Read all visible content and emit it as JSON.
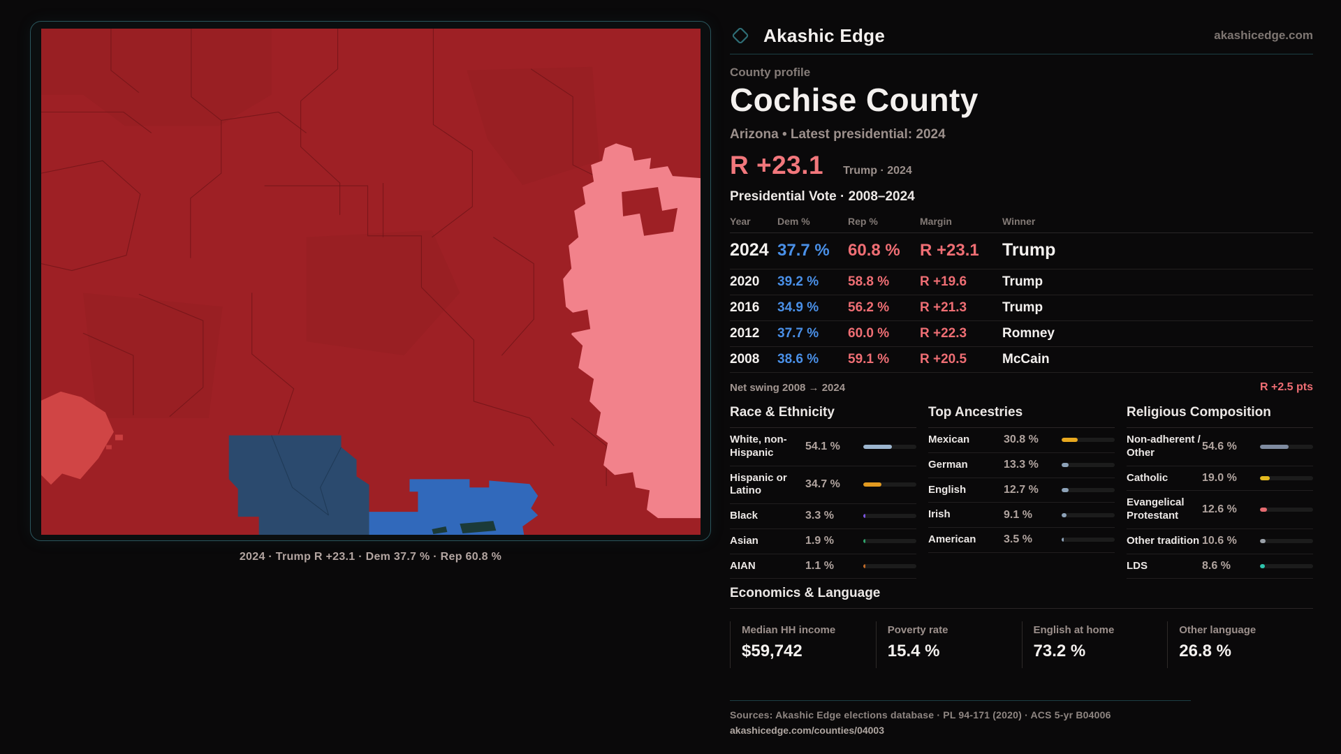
{
  "colors": {
    "accent_teal": "#2b565d",
    "dem_blue": "#4a90e8",
    "rep_red": "#ef6e74",
    "hero_margin": "#f2777c",
    "map": {
      "base_red": "#9e2025",
      "dark_red_patch": "#8a1a1f",
      "pink": "#f2828b",
      "light_red": "#d04545",
      "navy_blue": "#2b4a6e",
      "bright_blue": "#3169bb",
      "boundary": "#701418",
      "navy_boundary": "#1f3a57",
      "dark_marks": "#1b3a38"
    }
  },
  "header": {
    "brand": "Akashic Edge",
    "domain": "akashicedge.com"
  },
  "profile": {
    "eyebrow": "County profile",
    "title": "Cochise County",
    "subtitle": "Arizona • Latest presidential: 2024",
    "hero_margin": "R +23.1",
    "hero_note": "Trump · 2024"
  },
  "map": {
    "caption": "2024 · Trump R +23.1 · Dem 37.7 % · Rep 60.8 %"
  },
  "vote_table": {
    "title": "Presidential Vote · 2008–2024",
    "columns": [
      "Year",
      "Dem %",
      "Rep %",
      "Margin",
      "Winner"
    ],
    "rows": [
      {
        "year": "2024",
        "dem": "37.7 %",
        "rep": "60.8 %",
        "margin": "R +23.1",
        "winner": "Trump",
        "highlight": true
      },
      {
        "year": "2020",
        "dem": "39.2 %",
        "rep": "58.8 %",
        "margin": "R +19.6",
        "winner": "Trump",
        "highlight": false
      },
      {
        "year": "2016",
        "dem": "34.9 %",
        "rep": "56.2 %",
        "margin": "R +21.3",
        "winner": "Trump",
        "highlight": false
      },
      {
        "year": "2012",
        "dem": "37.7 %",
        "rep": "60.0 %",
        "margin": "R +22.3",
        "winner": "Romney",
        "highlight": false
      },
      {
        "year": "2008",
        "dem": "38.6 %",
        "rep": "59.1 %",
        "margin": "R +20.5",
        "winner": "McCain",
        "highlight": false
      }
    ],
    "net_swing_label": "Net swing 2008 → 2024",
    "net_swing_value": "R +2.5 pts"
  },
  "breakdowns": [
    {
      "title": "Race & Ethnicity",
      "rows": [
        {
          "label": "White, non-Hispanic",
          "value": "54.1 %",
          "pct": 54.1,
          "color": "#9db6cf"
        },
        {
          "label": "Hispanic or Latino",
          "value": "34.7 %",
          "pct": 34.7,
          "color": "#e29a20"
        },
        {
          "label": "Black",
          "value": "3.3 %",
          "pct": 3.3,
          "color": "#7a55e0"
        },
        {
          "label": "Asian",
          "value": "1.9 %",
          "pct": 1.9,
          "color": "#2fa36b"
        },
        {
          "label": "AIAN",
          "value": "1.1 %",
          "pct": 1.1,
          "color": "#c06a28"
        }
      ]
    },
    {
      "title": "Top Ancestries",
      "rows": [
        {
          "label": "Mexican",
          "value": "30.8 %",
          "pct": 30.8,
          "color": "#e8a81f"
        },
        {
          "label": "German",
          "value": "13.3 %",
          "pct": 13.3,
          "color": "#8da2b8"
        },
        {
          "label": "English",
          "value": "12.7 %",
          "pct": 12.7,
          "color": "#8da2b8"
        },
        {
          "label": "Irish",
          "value": "9.1 %",
          "pct": 9.1,
          "color": "#8da2b8"
        },
        {
          "label": "American",
          "value": "3.5 %",
          "pct": 3.5,
          "color": "#8da2b8"
        }
      ]
    },
    {
      "title": "Religious Composition",
      "rows": [
        {
          "label": "Non-adherent / Other",
          "value": "54.6 %",
          "pct": 54.6,
          "color": "#7f8ba0"
        },
        {
          "label": "Catholic",
          "value": "19.0 %",
          "pct": 19.0,
          "color": "#e3b91f"
        },
        {
          "label": "Evangelical Protestant",
          "value": "12.6 %",
          "pct": 12.6,
          "color": "#e56b70"
        },
        {
          "label": "Other tradition",
          "value": "10.6 %",
          "pct": 10.6,
          "color": "#9aa0a8"
        },
        {
          "label": "LDS",
          "value": "8.6 %",
          "pct": 8.6,
          "color": "#2ec4ad"
        }
      ]
    }
  ],
  "economics": {
    "title": "Economics & Language",
    "stats": [
      {
        "label": "Median HH income",
        "value": "$59,742"
      },
      {
        "label": "Poverty rate",
        "value": "15.4 %"
      },
      {
        "label": "English at home",
        "value": "73.2 %"
      },
      {
        "label": "Other language",
        "value": "26.8 %"
      }
    ]
  },
  "footer": {
    "sources": "Sources: Akashic Edge elections database · PL 94-171 (2020) · ACS 5-yr B04006",
    "permalink": "akashicedge.com/counties/04003"
  }
}
